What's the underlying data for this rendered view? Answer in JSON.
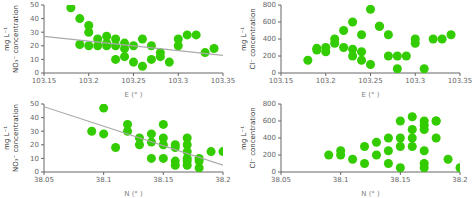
{
  "chart_data": [
    {
      "type": "scatter",
      "xlabel": "E (° )",
      "ylabel": "mg L⁻¹\nNO₃⁻ concentration",
      "xlim": [
        103.15,
        103.35
      ],
      "ylim": [
        0,
        50
      ],
      "xticks": [
        103.15,
        103.2,
        103.25,
        103.3,
        103.35
      ],
      "yticks": [
        0,
        10,
        20,
        30,
        40,
        50
      ],
      "series": [
        {
          "type": "scatter",
          "color": "#33cc00",
          "x": [
            103.18,
            103.19,
            103.19,
            103.2,
            103.2,
            103.2,
            103.21,
            103.21,
            103.22,
            103.22,
            103.22,
            103.23,
            103.23,
            103.23,
            103.24,
            103.24,
            103.24,
            103.25,
            103.25,
            103.26,
            103.26,
            103.27,
            103.27,
            103.28,
            103.28,
            103.29,
            103.3,
            103.3,
            103.31,
            103.32,
            103.33,
            103.34
          ],
          "values": [
            48,
            40,
            21,
            20,
            35,
            30,
            25,
            20,
            27,
            22,
            20,
            25,
            20,
            10,
            22,
            18,
            12,
            20,
            8,
            5,
            25,
            20,
            10,
            15,
            12,
            8,
            25,
            20,
            28,
            28,
            15,
            18
          ]
        },
        {
          "type": "line",
          "color": "#aaaaaa",
          "x": [
            103.15,
            103.35
          ],
          "values": [
            27,
            13
          ]
        }
      ]
    },
    {
      "type": "scatter",
      "xlabel": "E (° )",
      "ylabel": "mg L⁻¹\nCl⁻ concentration",
      "xlim": [
        103.15,
        103.35
      ],
      "ylim": [
        0,
        800
      ],
      "xticks": [
        103.15,
        103.2,
        103.25,
        103.3,
        103.35
      ],
      "yticks": [
        0,
        200,
        400,
        600,
        800
      ],
      "series": [
        {
          "type": "scatter",
          "color": "#33cc00",
          "x": [
            103.18,
            103.19,
            103.19,
            103.2,
            103.2,
            103.21,
            103.21,
            103.22,
            103.22,
            103.23,
            103.23,
            103.23,
            103.24,
            103.24,
            103.24,
            103.25,
            103.25,
            103.26,
            103.26,
            103.27,
            103.27,
            103.28,
            103.28,
            103.29,
            103.3,
            103.3,
            103.31,
            103.32,
            103.33,
            103.34
          ],
          "values": [
            150,
            270,
            290,
            300,
            250,
            350,
            400,
            500,
            300,
            600,
            280,
            200,
            150,
            250,
            450,
            750,
            100,
            550,
            550,
            450,
            200,
            200,
            50,
            200,
            350,
            400,
            50,
            400,
            400,
            450
          ]
        }
      ]
    },
    {
      "type": "scatter",
      "xlabel": "N (° )",
      "ylabel": "mg L⁻¹\nNO₃⁻ concentration",
      "xlim": [
        38.05,
        38.2
      ],
      "ylim": [
        0,
        50
      ],
      "xticks": [
        38.05,
        38.1,
        38.15,
        38.2
      ],
      "yticks": [
        0,
        10,
        20,
        30,
        40,
        50
      ],
      "series": [
        {
          "type": "scatter",
          "color": "#33cc00",
          "x": [
            38.09,
            38.1,
            38.1,
            38.11,
            38.12,
            38.12,
            38.13,
            38.13,
            38.14,
            38.14,
            38.14,
            38.15,
            38.15,
            38.15,
            38.15,
            38.16,
            38.16,
            38.16,
            38.16,
            38.17,
            38.17,
            38.17,
            38.17,
            38.17,
            38.17,
            38.18,
            38.18,
            38.18,
            38.19,
            38.2
          ],
          "values": [
            30,
            47,
            28,
            18,
            35,
            30,
            25,
            20,
            22,
            28,
            10,
            35,
            25,
            20,
            10,
            20,
            18,
            8,
            5,
            25,
            20,
            15,
            10,
            8,
            5,
            10,
            8,
            3,
            15,
            15
          ]
        },
        {
          "type": "line",
          "color": "#aaaaaa",
          "x": [
            38.05,
            38.2
          ],
          "values": [
            48,
            5
          ]
        }
      ]
    },
    {
      "type": "scatter",
      "xlabel": "N (° )",
      "ylabel": "mg L⁻¹\nCl⁻ concentration",
      "xlim": [
        38.05,
        38.2
      ],
      "ylim": [
        0,
        800
      ],
      "xticks": [
        38.05,
        38.1,
        38.15,
        38.2
      ],
      "yticks": [
        0,
        200,
        400,
        600,
        800
      ],
      "series": [
        {
          "type": "scatter",
          "color": "#33cc00",
          "x": [
            38.09,
            38.1,
            38.1,
            38.11,
            38.12,
            38.12,
            38.13,
            38.13,
            38.14,
            38.14,
            38.14,
            38.15,
            38.15,
            38.15,
            38.15,
            38.16,
            38.16,
            38.16,
            38.16,
            38.17,
            38.17,
            38.17,
            38.17,
            38.17,
            38.17,
            38.18,
            38.18,
            38.18,
            38.19,
            38.2
          ],
          "values": [
            200,
            250,
            200,
            150,
            100,
            300,
            350,
            200,
            250,
            100,
            400,
            50,
            400,
            300,
            600,
            300,
            500,
            650,
            400,
            550,
            500,
            250,
            100,
            50,
            600,
            600,
            400,
            600,
            150,
            50
          ]
        }
      ]
    }
  ]
}
